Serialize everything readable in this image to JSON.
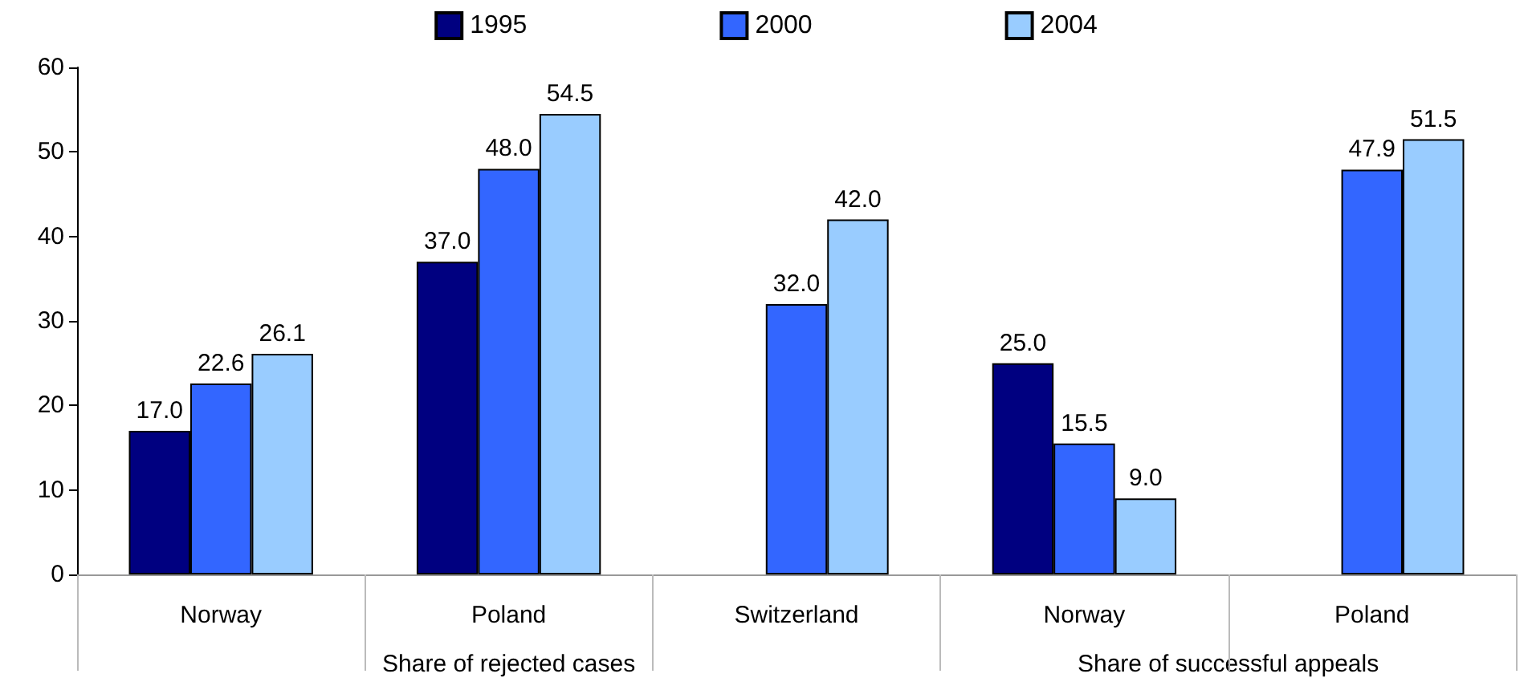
{
  "chart_data": {
    "type": "bar",
    "categories": [
      "Norway",
      "Poland",
      "Switzerland",
      "Norway",
      "Poland"
    ],
    "series": [
      {
        "name": "1995",
        "color": "#000080",
        "values": [
          17.0,
          37.0,
          null,
          25.0,
          null
        ],
        "value_labels": [
          "17.0",
          "37.0",
          null,
          "25.0",
          null
        ]
      },
      {
        "name": "2000",
        "color": "#3366ff",
        "values": [
          22.6,
          48.0,
          32.0,
          15.5,
          47.9
        ],
        "value_labels": [
          "22.6",
          "48.0",
          "32.0",
          "15.5",
          "47.9"
        ]
      },
      {
        "name": "2004",
        "color": "#99ccff",
        "values": [
          26.1,
          54.5,
          42.0,
          9.0,
          51.5
        ],
        "value_labels": [
          "26.1",
          "54.5",
          "42.0",
          "9.0",
          "51.5"
        ]
      }
    ],
    "annotations": [
      "Share of rejected cases",
      "Share of successful appeals"
    ],
    "ylim": [
      0,
      60
    ],
    "yticks": [
      0,
      10,
      20,
      30,
      40,
      50,
      60
    ],
    "grid": false,
    "legend": "top"
  }
}
